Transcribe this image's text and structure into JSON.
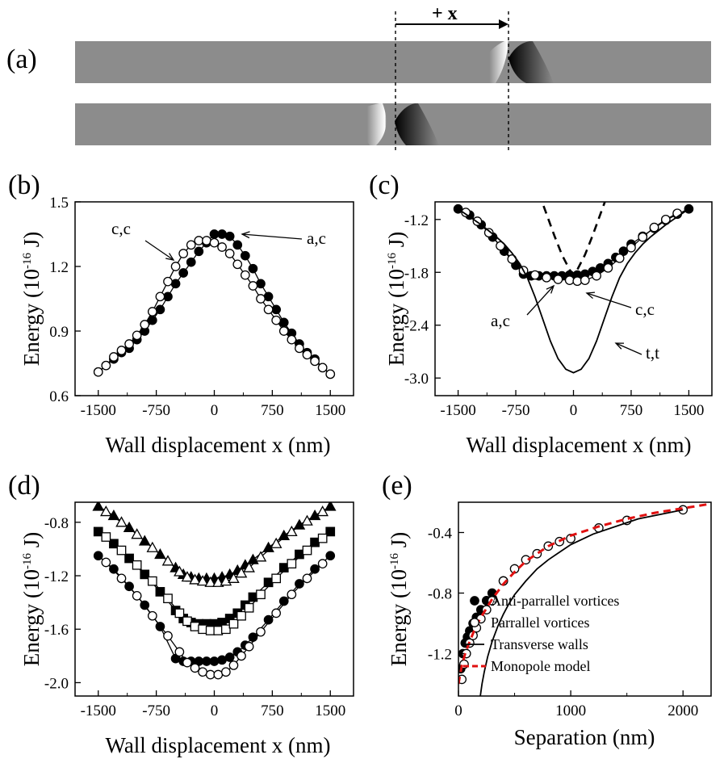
{
  "panel_a": {
    "label": "(a)",
    "shift_label": "+ x"
  },
  "chart_data": [
    {
      "id": "b",
      "panel_label": "(b)",
      "type": "line",
      "xlabel": "Wall displacement x (nm)",
      "ylabel_main": "Energy (10",
      "ylabel_sup": "-16",
      "ylabel_tail": " J)",
      "xlim": [
        -1800,
        1800
      ],
      "ylim": [
        0.6,
        1.5
      ],
      "xticks": [
        -1500,
        -750,
        0,
        750,
        1500
      ],
      "xtick_labels": [
        "-1500",
        "-750",
        "0",
        "750",
        "1500"
      ],
      "yticks": [
        0.6,
        0.9,
        1.2,
        1.5
      ],
      "ytick_labels": [
        "0.6",
        "0.9",
        "1.2",
        "1.5"
      ],
      "series": [
        {
          "name": "a,c",
          "marker": "filled-circle",
          "x": [
            -1500,
            -1400,
            -1300,
            -1200,
            -1100,
            -1000,
            -900,
            -800,
            -700,
            -600,
            -500,
            -400,
            -300,
            -200,
            -100,
            0,
            100,
            200,
            300,
            400,
            500,
            600,
            700,
            800,
            900,
            1000,
            1100,
            1200,
            1300,
            1400,
            1500
          ],
          "y": [
            0.71,
            0.74,
            0.77,
            0.8,
            0.82,
            0.86,
            0.9,
            0.95,
            1.0,
            1.06,
            1.12,
            1.17,
            1.22,
            1.27,
            1.31,
            1.35,
            1.35,
            1.34,
            1.3,
            1.25,
            1.19,
            1.12,
            1.06,
            1.0,
            0.94,
            0.89,
            0.84,
            0.8,
            0.77,
            0.73,
            0.7
          ]
        },
        {
          "name": "c,c",
          "marker": "open-circle",
          "x": [
            -1500,
            -1400,
            -1300,
            -1200,
            -1100,
            -1000,
            -900,
            -800,
            -700,
            -600,
            -500,
            -400,
            -300,
            -200,
            -100,
            0,
            100,
            200,
            300,
            400,
            500,
            600,
            700,
            800,
            900,
            1000,
            1100,
            1200,
            1300,
            1400,
            1500
          ],
          "y": [
            0.71,
            0.74,
            0.78,
            0.81,
            0.84,
            0.88,
            0.93,
            0.99,
            1.06,
            1.13,
            1.2,
            1.26,
            1.3,
            1.32,
            1.32,
            1.31,
            1.29,
            1.26,
            1.21,
            1.16,
            1.11,
            1.05,
            1.0,
            0.95,
            0.9,
            0.86,
            0.82,
            0.79,
            0.76,
            0.73,
            0.7
          ]
        }
      ],
      "annotations": [
        "c,c",
        "a,c"
      ]
    },
    {
      "id": "c",
      "panel_label": "(c)",
      "type": "line",
      "xlabel": "Wall displacement x (nm)",
      "ylabel_main": "Energy (10",
      "ylabel_sup": "-16",
      "ylabel_tail": " J)",
      "xlim": [
        -1800,
        1800
      ],
      "ylim": [
        -3.2,
        -1.0
      ],
      "xticks": [
        -1500,
        -750,
        0,
        750,
        1500
      ],
      "xtick_labels": [
        "-1500",
        "-750",
        "0",
        "750",
        "1500"
      ],
      "yticks": [
        -3.0,
        -2.4,
        -1.8,
        -1.2
      ],
      "ytick_labels": [
        "-3.0",
        "-2.4",
        "-1.8",
        "-1.2"
      ],
      "series": [
        {
          "name": "a,c",
          "marker": "filled-circle",
          "x": [
            -1500,
            -1350,
            -1200,
            -1050,
            -900,
            -750,
            -650,
            -550,
            -450,
            -350,
            -250,
            -150,
            -50,
            50,
            150,
            250,
            350,
            450,
            550,
            650,
            750,
            900,
            1050,
            1200,
            1350,
            1500
          ],
          "y": [
            -1.08,
            -1.15,
            -1.26,
            -1.4,
            -1.56,
            -1.72,
            -1.82,
            -1.84,
            -1.84,
            -1.84,
            -1.84,
            -1.84,
            -1.83,
            -1.83,
            -1.82,
            -1.79,
            -1.75,
            -1.7,
            -1.63,
            -1.56,
            -1.48,
            -1.39,
            -1.3,
            -1.21,
            -1.14,
            -1.08
          ]
        },
        {
          "name": "c,c",
          "marker": "open-circle",
          "x": [
            -1400,
            -1250,
            -1100,
            -950,
            -800,
            -650,
            -500,
            -350,
            -200,
            -50,
            50,
            150,
            300,
            450,
            600,
            750,
            900,
            1050,
            1200,
            1350
          ],
          "y": [
            -1.12,
            -1.22,
            -1.35,
            -1.5,
            -1.65,
            -1.78,
            -1.83,
            -1.86,
            -1.88,
            -1.89,
            -1.9,
            -1.89,
            -1.84,
            -1.75,
            -1.64,
            -1.52,
            -1.4,
            -1.29,
            -1.2,
            -1.13
          ]
        },
        {
          "name": "t,t",
          "marker": "line",
          "x": [
            -1500,
            -1400,
            -1300,
            -1200,
            -1100,
            -1000,
            -900,
            -800,
            -700,
            -600,
            -500,
            -400,
            -300,
            -200,
            -100,
            0,
            100,
            200,
            300,
            400,
            500,
            600,
            700,
            800,
            900,
            1000,
            1100,
            1200,
            1300,
            1400,
            1500
          ],
          "y": [
            -1.08,
            -1.14,
            -1.2,
            -1.26,
            -1.33,
            -1.4,
            -1.48,
            -1.58,
            -1.7,
            -1.86,
            -2.08,
            -2.33,
            -2.58,
            -2.78,
            -2.9,
            -2.94,
            -2.9,
            -2.78,
            -2.58,
            -2.33,
            -2.08,
            -1.86,
            -1.7,
            -1.58,
            -1.48,
            -1.4,
            -1.33,
            -1.26,
            -1.2,
            -1.14,
            -1.08
          ]
        },
        {
          "name": "dashed",
          "marker": "dashed-line",
          "x": [
            -450,
            -350,
            -250,
            -150,
            -50,
            0,
            50,
            150,
            250,
            350,
            450
          ],
          "y": [
            -0.9,
            -1.14,
            -1.38,
            -1.6,
            -1.77,
            -1.83,
            -1.77,
            -1.6,
            -1.38,
            -1.14,
            -0.9
          ]
        }
      ],
      "annotations": [
        "a,c",
        "c,c",
        "t,t"
      ]
    },
    {
      "id": "d",
      "panel_label": "(d)",
      "type": "line",
      "xlabel": "Wall displacement x (nm)",
      "ylabel_main": "Energy (10",
      "ylabel_sup": "-16",
      "ylabel_tail": " J)",
      "xlim": [
        -1800,
        1800
      ],
      "ylim": [
        -2.1,
        -0.65
      ],
      "xticks": [
        -1500,
        -750,
        0,
        750,
        1500
      ],
      "xtick_labels": [
        "-1500",
        "-750",
        "0",
        "750",
        "1500"
      ],
      "yticks": [
        -2.0,
        -1.6,
        -1.2,
        -0.8
      ],
      "ytick_labels": [
        "-2.0",
        "-1.6",
        "-1.2",
        "-0.8"
      ],
      "series": [
        {
          "name": "",
          "marker": "filled-triangle",
          "x": [
            -1500,
            -1300,
            -1100,
            -900,
            -700,
            -500,
            -400,
            -300,
            -200,
            -100,
            0,
            100,
            200,
            300,
            400,
            500,
            700,
            900,
            1100,
            1300,
            1500
          ],
          "y": [
            -0.68,
            -0.75,
            -0.84,
            -0.94,
            -1.04,
            -1.14,
            -1.19,
            -1.21,
            -1.22,
            -1.22,
            -1.22,
            -1.21,
            -1.19,
            -1.16,
            -1.12,
            -1.08,
            -0.99,
            -0.9,
            -0.82,
            -0.75,
            -0.68
          ]
        },
        {
          "name": "",
          "marker": "open-triangle",
          "x": [
            -1400,
            -1200,
            -1000,
            -800,
            -600,
            -450,
            -350,
            -250,
            -150,
            -50,
            50,
            150,
            250,
            350,
            450,
            600,
            800,
            1000,
            1200,
            1400
          ],
          "y": [
            -0.72,
            -0.8,
            -0.89,
            -0.99,
            -1.09,
            -1.17,
            -1.21,
            -1.23,
            -1.24,
            -1.25,
            -1.25,
            -1.24,
            -1.22,
            -1.18,
            -1.14,
            -1.06,
            -0.96,
            -0.87,
            -0.79,
            -0.72
          ]
        },
        {
          "name": "",
          "marker": "filled-square",
          "x": [
            -1500,
            -1300,
            -1100,
            -900,
            -700,
            -500,
            -400,
            -300,
            -200,
            -100,
            0,
            100,
            200,
            300,
            400,
            500,
            700,
            900,
            1100,
            1300,
            1500
          ],
          "y": [
            -0.87,
            -0.96,
            -1.07,
            -1.19,
            -1.32,
            -1.46,
            -1.52,
            -1.55,
            -1.56,
            -1.56,
            -1.56,
            -1.55,
            -1.52,
            -1.48,
            -1.42,
            -1.36,
            -1.25,
            -1.14,
            -1.04,
            -0.95,
            -0.87
          ]
        },
        {
          "name": "",
          "marker": "open-square",
          "x": [
            -1400,
            -1200,
            -1000,
            -800,
            -600,
            -450,
            -350,
            -250,
            -150,
            -50,
            50,
            150,
            250,
            350,
            450,
            600,
            800,
            1000,
            1200,
            1400
          ],
          "y": [
            -0.91,
            -1.01,
            -1.12,
            -1.24,
            -1.37,
            -1.48,
            -1.54,
            -1.58,
            -1.6,
            -1.61,
            -1.61,
            -1.6,
            -1.56,
            -1.5,
            -1.44,
            -1.34,
            -1.22,
            -1.11,
            -1.01,
            -0.92
          ]
        },
        {
          "name": "",
          "marker": "filled-circle",
          "x": [
            -1500,
            -1300,
            -1100,
            -900,
            -700,
            -500,
            -400,
            -300,
            -200,
            -100,
            0,
            100,
            200,
            300,
            400,
            500,
            700,
            900,
            1100,
            1300,
            1500
          ],
          "y": [
            -1.05,
            -1.15,
            -1.28,
            -1.42,
            -1.58,
            -1.82,
            -1.84,
            -1.84,
            -1.84,
            -1.84,
            -1.84,
            -1.83,
            -1.81,
            -1.77,
            -1.72,
            -1.66,
            -1.53,
            -1.39,
            -1.26,
            -1.15,
            -1.05
          ]
        },
        {
          "name": "",
          "marker": "open-circle",
          "x": [
            -1400,
            -1200,
            -1000,
            -800,
            -600,
            -450,
            -350,
            -250,
            -150,
            -50,
            50,
            150,
            250,
            350,
            450,
            600,
            800,
            1000,
            1200,
            1400
          ],
          "y": [
            -1.1,
            -1.22,
            -1.35,
            -1.5,
            -1.65,
            -1.77,
            -1.85,
            -1.89,
            -1.92,
            -1.94,
            -1.94,
            -1.92,
            -1.87,
            -1.8,
            -1.73,
            -1.62,
            -1.48,
            -1.34,
            -1.22,
            -1.11
          ]
        }
      ]
    },
    {
      "id": "e",
      "panel_label": "(e)",
      "type": "scatter",
      "xlabel": "Separation (nm)",
      "ylabel_main": "Energy (10",
      "ylabel_sup": "-16",
      "ylabel_tail": " J)",
      "xlim": [
        0,
        2250
      ],
      "ylim": [
        -1.48,
        -0.2
      ],
      "xticks": [
        0,
        1000,
        2000
      ],
      "xtick_labels": [
        "0",
        "1000",
        "2000"
      ],
      "yticks": [
        -1.2,
        -0.8,
        -0.4
      ],
      "ytick_labels": [
        "-1.2",
        "-0.8",
        "-0.4"
      ],
      "series": [
        {
          "name": "Anti-parrallel vortices",
          "marker": "filled-circle",
          "x": [
            20,
            40,
            60,
            80,
            100,
            130,
            160,
            200,
            250,
            300,
            400
          ],
          "y": [
            -1.3,
            -1.2,
            -1.13,
            -1.09,
            -1.05,
            -1.0,
            -0.96,
            -0.91,
            -0.85,
            -0.8,
            -0.72
          ]
        },
        {
          "name": "Parrallel vortices",
          "marker": "open-circle",
          "x": [
            30,
            50,
            70,
            100,
            130,
            160,
            200,
            250,
            300,
            400,
            500,
            600,
            700,
            800,
            900,
            1000,
            1250,
            1500,
            2000
          ],
          "y": [
            -1.37,
            -1.27,
            -1.2,
            -1.13,
            -1.08,
            -1.03,
            -0.97,
            -0.91,
            -0.85,
            -0.72,
            -0.64,
            -0.58,
            -0.54,
            -0.49,
            -0.46,
            -0.44,
            -0.37,
            -0.32,
            -0.25
          ]
        },
        {
          "name": "Transverse walls",
          "marker": "line",
          "x": [
            195,
            210,
            230,
            260,
            300,
            350,
            400,
            450,
            500,
            600,
            700,
            800,
            900,
            1000,
            1200,
            1400,
            1600,
            1800,
            2000
          ],
          "y": [
            -1.48,
            -1.4,
            -1.32,
            -1.22,
            -1.12,
            -1.02,
            -0.94,
            -0.87,
            -0.81,
            -0.72,
            -0.64,
            -0.58,
            -0.53,
            -0.48,
            -0.41,
            -0.36,
            -0.31,
            -0.28,
            -0.25
          ]
        },
        {
          "name": "Monopole model",
          "marker": "red-dashed",
          "x": [
            0,
            30,
            60,
            100,
            150,
            200,
            250,
            300,
            400,
            500,
            600,
            800,
            1000,
            1250,
            1500,
            1750,
            2000,
            2250
          ],
          "y": [
            -1.4,
            -1.28,
            -1.2,
            -1.12,
            -1.03,
            -0.96,
            -0.9,
            -0.84,
            -0.74,
            -0.66,
            -0.59,
            -0.49,
            -0.42,
            -0.36,
            -0.31,
            -0.27,
            -0.24,
            -0.21
          ]
        }
      ]
    }
  ]
}
